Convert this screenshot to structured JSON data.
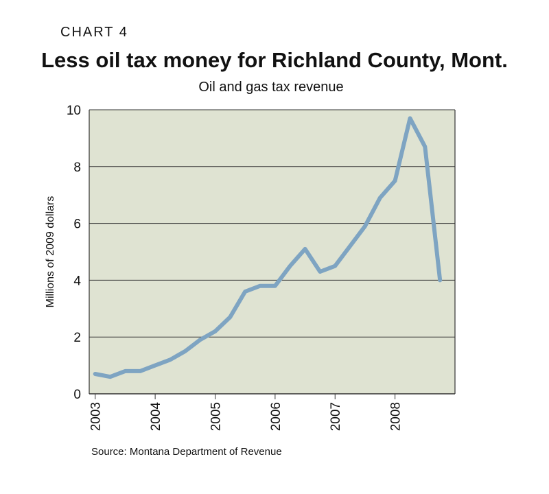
{
  "header": {
    "chart_label": "CHART 4",
    "title": "Less oil tax money for Richland County, Mont.",
    "subtitle": "Oil and gas tax revenue",
    "source": "Source: Montana Department of Revenue"
  },
  "colors": {
    "plot_background": "#dfe3d2",
    "line": "#7ea4c2",
    "grid": "#333333"
  },
  "chart_data": {
    "type": "line",
    "title": "Less oil tax money for Richland County, Mont.",
    "subtitle": "Oil and gas tax revenue",
    "ylabel": "Millions of 2009 dollars",
    "xlabel": "",
    "ylim": [
      0,
      10
    ],
    "xlim": [
      2002.9,
      2009.0
    ],
    "yticks": [
      0,
      2,
      4,
      6,
      8,
      10
    ],
    "xticks": [
      "2003",
      "2004",
      "2005",
      "2006",
      "2007",
      "2008"
    ],
    "grid": "horizontal",
    "series": [
      {
        "x": [
          2003.0,
          2003.25,
          2003.5,
          2003.75,
          2004.0,
          2004.25,
          2004.5,
          2004.75,
          2005.0,
          2005.25,
          2005.5,
          2005.75,
          2006.0,
          2006.25,
          2006.5,
          2006.75,
          2007.0,
          2007.25,
          2007.5,
          2007.75,
          2008.0,
          2008.25,
          2008.5,
          2008.75
        ],
        "values": [
          0.7,
          0.6,
          0.8,
          0.8,
          1.0,
          1.2,
          1.5,
          1.9,
          2.2,
          2.7,
          3.6,
          3.8,
          3.8,
          4.5,
          5.1,
          4.3,
          4.5,
          5.2,
          5.9,
          6.9,
          7.5,
          9.7,
          8.7,
          4.0
        ]
      }
    ]
  }
}
